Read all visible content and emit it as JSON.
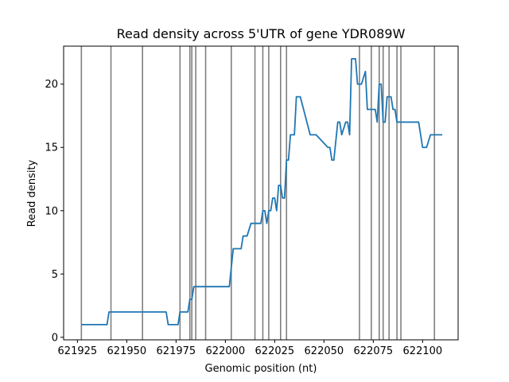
{
  "chart_data": {
    "type": "line",
    "title": "Read density across 5'UTR of gene YDR089W",
    "xlabel": "Genomic position (nt)",
    "ylabel": "Read density",
    "xlim": [
      621918,
      622118
    ],
    "ylim": [
      -0.2,
      23.0
    ],
    "xticks": [
      621925,
      621950,
      621975,
      622000,
      622025,
      622050,
      622075,
      622100
    ],
    "xtick_labels": [
      "621925",
      "621950",
      "621975",
      "622000",
      "622025",
      "622050",
      "622075",
      "622100"
    ],
    "yticks": [
      0,
      5,
      10,
      15,
      20
    ],
    "ytick_labels": [
      "0",
      "5",
      "10",
      "15",
      "20"
    ],
    "grid": false,
    "line_color": "#1f77b4",
    "vline_color": "#808080",
    "vlines": [
      621927,
      621942,
      621958,
      621977,
      621982,
      621983,
      621985,
      621990,
      622003,
      622015,
      622019,
      622022,
      622028,
      622031,
      622068,
      622074,
      622078,
      622080,
      622083,
      622087,
      622089,
      622106
    ],
    "series": [
      {
        "x": [
          621927,
          621940,
          621941,
          621970,
          621971,
          621976,
          621977,
          621981,
          621982,
          621983,
          621984,
          622002,
          622004,
          622008,
          622009,
          622010,
          622011,
          622013,
          622014,
          622018,
          622019,
          622020,
          622021,
          622022,
          622023,
          622024,
          622025,
          622026,
          622027,
          622028,
          622029,
          622030,
          622031,
          622032,
          622033,
          622034,
          622035,
          622036,
          622037,
          622038,
          622043,
          622046,
          622052,
          622053,
          622054,
          622055,
          622057,
          622058,
          622059,
          622061,
          622062,
          622063,
          622064,
          622065,
          622066,
          622067,
          622068,
          622069,
          622071,
          622072,
          622076,
          622077,
          622078,
          622079,
          622080,
          622081,
          622082,
          622083,
          622084,
          622085,
          622086,
          622087,
          622097,
          622098,
          622099,
          622100,
          622102,
          622104,
          622105,
          622106,
          622107,
          622108,
          622110
        ],
        "values": [
          1,
          1,
          2,
          2,
          1,
          1,
          2,
          2,
          3,
          3,
          4,
          4,
          7,
          7,
          8,
          8,
          8,
          9,
          9,
          9,
          10,
          10,
          9,
          10,
          10,
          11,
          11,
          10,
          12,
          12,
          11,
          11,
          14,
          14,
          16,
          16,
          16,
          19,
          19,
          19,
          16,
          16,
          15,
          15,
          14,
          14,
          17,
          17,
          16,
          17,
          17,
          16,
          22,
          22,
          22,
          20,
          20,
          20,
          21,
          18,
          18,
          17,
          20,
          20,
          17,
          17,
          19,
          19,
          19,
          18,
          18,
          17,
          17,
          17,
          16,
          15,
          15,
          16,
          16,
          16,
          16,
          16,
          16
        ]
      }
    ]
  }
}
